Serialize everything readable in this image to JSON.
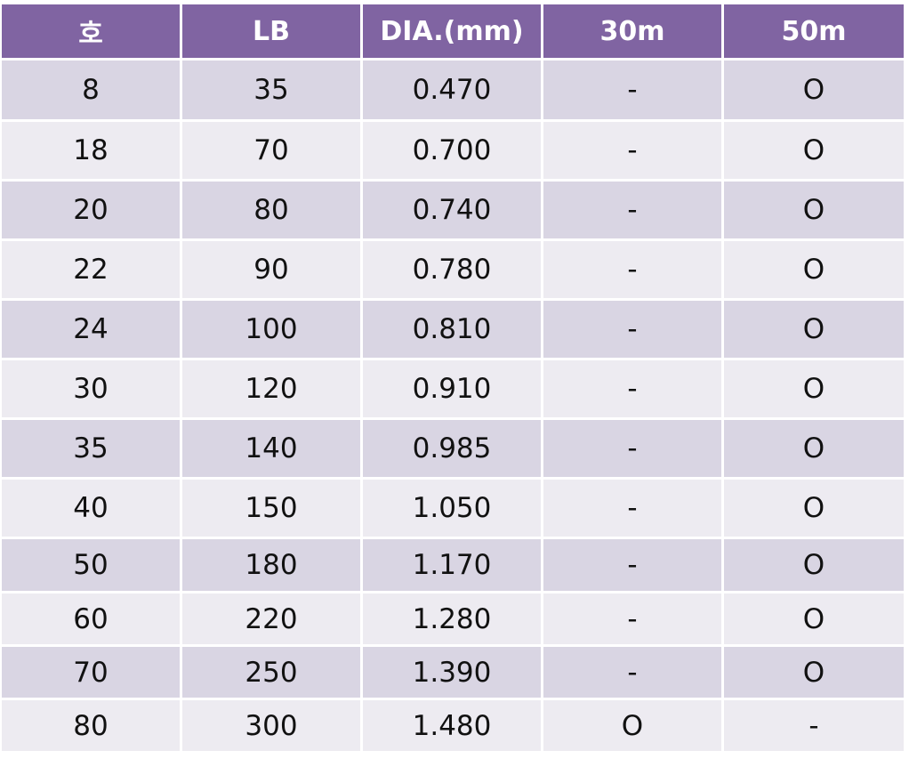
{
  "table": {
    "header": [
      "호",
      "LB",
      "DIA.(mm)",
      "30m",
      "50m"
    ],
    "rows": [
      [
        "8",
        "35",
        "0.470",
        "-",
        "O"
      ],
      [
        "18",
        "70",
        "0.700",
        "-",
        "O"
      ],
      [
        "20",
        "80",
        "0.740",
        "-",
        "O"
      ],
      [
        "22",
        "90",
        "0.780",
        "-",
        "O"
      ],
      [
        "24",
        "100",
        "0.810",
        "-",
        "O"
      ],
      [
        "30",
        "120",
        "0.910",
        "-",
        "O"
      ],
      [
        "35",
        "140",
        "0.985",
        "-",
        "O"
      ],
      [
        "40",
        "150",
        "1.050",
        "-",
        "O"
      ],
      [
        "50",
        "180",
        "1.170",
        "-",
        "O"
      ],
      [
        "60",
        "220",
        "1.280",
        "-",
        "O"
      ],
      [
        "70",
        "250",
        "1.390",
        "-",
        "O"
      ],
      [
        "80",
        "300",
        "1.480",
        "O",
        "-"
      ]
    ]
  }
}
